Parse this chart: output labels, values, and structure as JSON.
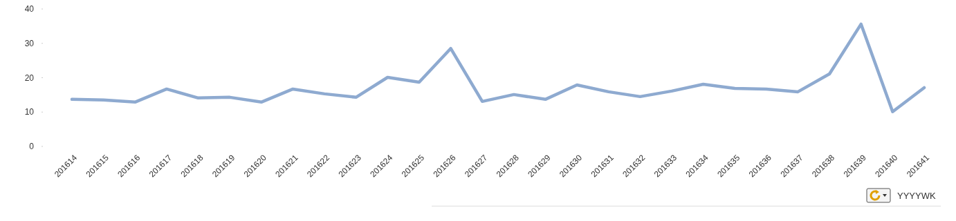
{
  "chart_data": {
    "type": "line",
    "xlabel": "YYYYWK",
    "categories": [
      "201614",
      "201615",
      "201616",
      "201617",
      "201618",
      "201619",
      "201620",
      "201621",
      "201622",
      "201623",
      "201624",
      "201625",
      "201626",
      "201627",
      "201628",
      "201629",
      "201630",
      "201631",
      "201632",
      "201633",
      "201634",
      "201635",
      "201636",
      "201637",
      "201638",
      "201639",
      "201640",
      "201641"
    ],
    "series": [
      {
        "color": "#8eaad0",
        "values": [
          13.7,
          13.5,
          12.9,
          16.7,
          14.1,
          14.3,
          12.9,
          16.7,
          15.3,
          14.3,
          20.1,
          18.7,
          28.5,
          13.1,
          15.1,
          13.7,
          17.9,
          15.9,
          14.5,
          16.1,
          18.1,
          16.9,
          16.7,
          15.9,
          21.1,
          35.6,
          10.1,
          17.1
        ]
      }
    ],
    "ylim": [
      0,
      40
    ],
    "yticks": [
      0,
      10,
      20,
      30,
      40
    ],
    "marker": "none"
  }
}
